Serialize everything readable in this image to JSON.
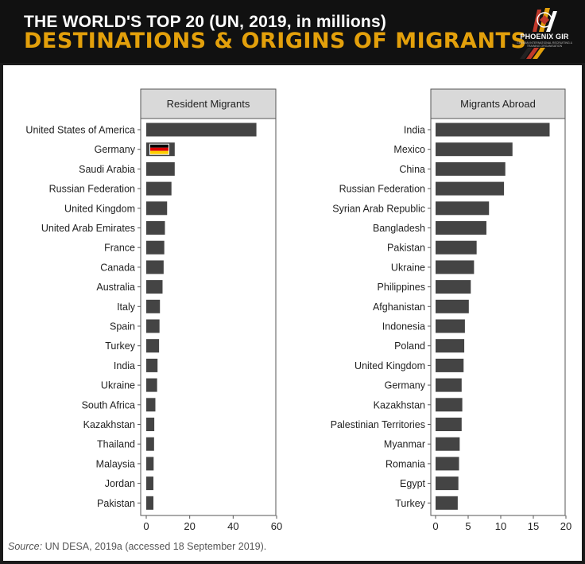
{
  "header": {
    "title_line1": "THE WORLD'S TOP 20 (UN, 2019, in millions)",
    "title_line2": "DESTINATIONS & ORIGINS OF MIGRANTS",
    "logo_text": "PHOENIX GIR",
    "logo_subtext": "GERMAN INTERNATIONAL RECRUITING & TRAINING ORGANISATION"
  },
  "source": {
    "label": "Source:",
    "text": "UN DESA, 2019a (accessed 18 September 2019)."
  },
  "colors": {
    "bar": "#444444",
    "accent": "#e3a00b",
    "header_bg": "#111111",
    "strip_bg": "#d9d9d9"
  },
  "chart_data": [
    {
      "type": "bar",
      "orientation": "horizontal",
      "title": "Resident Migrants",
      "categories": [
        "United States of America",
        "Germany",
        "Saudi Arabia",
        "Russian Federation",
        "United Kingdom",
        "United Arab Emirates",
        "France",
        "Canada",
        "Australia",
        "Italy",
        "Spain",
        "Turkey",
        "India",
        "Ukraine",
        "South Africa",
        "Kazakhstan",
        "Thailand",
        "Malaysia",
        "Jordan",
        "Pakistan"
      ],
      "values": [
        50.7,
        13.1,
        13.1,
        11.6,
        9.6,
        8.6,
        8.3,
        8.0,
        7.5,
        6.3,
        6.1,
        5.9,
        5.2,
        5.0,
        4.2,
        3.7,
        3.6,
        3.4,
        3.3,
        3.3
      ],
      "xlim": [
        0,
        60
      ],
      "xticks": [
        0,
        20,
        40,
        60
      ],
      "xlabel": "",
      "ylabel": "",
      "grid": false,
      "flag_on": "Germany"
    },
    {
      "type": "bar",
      "orientation": "horizontal",
      "title": "Migrants Abroad",
      "categories": [
        "India",
        "Mexico",
        "China",
        "Russian Federation",
        "Syrian Arab Republic",
        "Bangladesh",
        "Pakistan",
        "Ukraine",
        "Philippines",
        "Afghanistan",
        "Indonesia",
        "Poland",
        "United Kingdom",
        "Germany",
        "Kazakhstan",
        "Palestinian Territories",
        "Myanmar",
        "Romania",
        "Egypt",
        "Turkey"
      ],
      "values": [
        17.5,
        11.8,
        10.7,
        10.5,
        8.2,
        7.8,
        6.3,
        5.9,
        5.4,
        5.1,
        4.5,
        4.4,
        4.3,
        4.0,
        4.1,
        4.0,
        3.7,
        3.6,
        3.5,
        3.4
      ],
      "xlim": [
        0,
        20
      ],
      "xticks": [
        0,
        5,
        10,
        15,
        20
      ],
      "xlabel": "",
      "ylabel": "",
      "grid": false
    }
  ]
}
